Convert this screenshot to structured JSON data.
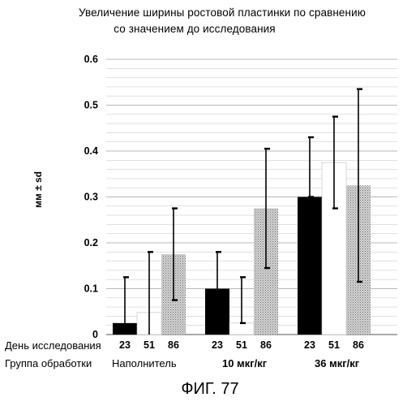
{
  "chart_data": {
    "type": "bar",
    "title": "Увеличение ширины ростовой пластинки по сравнению",
    "subtitle": "со значением до исследования",
    "ylabel": "мм ± sd",
    "ylim": [
      0,
      0.6
    ],
    "yticks": [
      "0",
      "0.1",
      "0.2",
      "0.3",
      "0.4",
      "0.5",
      "0.6"
    ],
    "row_label_day": "День исследования",
    "row_label_group": "Группа обработки",
    "days": [
      "23",
      "51",
      "86"
    ],
    "series_colors": {
      "23": "#000000",
      "51": "#ffffff",
      "86": "#c8c8c8"
    },
    "groups": [
      {
        "name": "Наполнитель",
        "days": [
          "23",
          "51",
          "86"
        ],
        "values": [
          0.025,
          0.048,
          0.175
        ],
        "err_low": [
          0.0,
          0.0,
          0.075
        ],
        "err_high": [
          0.125,
          0.18,
          0.275
        ]
      },
      {
        "name": "10 мкг/кг",
        "days": [
          "23",
          "51",
          "86"
        ],
        "values": [
          0.1,
          0.025,
          0.275
        ],
        "err_low": [
          0.02,
          0.025,
          0.145
        ],
        "err_high": [
          0.18,
          0.125,
          0.405
        ]
      },
      {
        "name": "36 мкг/кг",
        "days": [
          "23",
          "51",
          "86"
        ],
        "values": [
          0.3,
          0.375,
          0.325
        ],
        "err_low": [
          0.3,
          0.275,
          0.115
        ],
        "err_high": [
          0.43,
          0.475,
          0.535
        ]
      }
    ]
  },
  "figure_caption": "ФИГ. 77"
}
